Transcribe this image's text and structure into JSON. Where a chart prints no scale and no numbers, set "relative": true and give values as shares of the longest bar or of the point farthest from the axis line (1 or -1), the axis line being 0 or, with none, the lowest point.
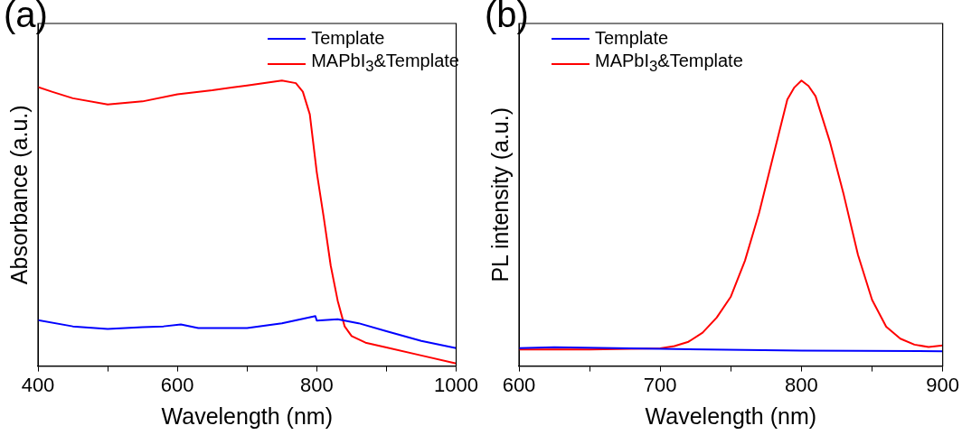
{
  "chart_data": [
    {
      "type": "line",
      "annotations": [
        "(a)"
      ],
      "xlabel": "Wavelength (nm)",
      "ylabel": "Absorbance (a.u.)",
      "relative": true,
      "legend": "top right",
      "grid": false,
      "xlim": [
        400,
        1000
      ],
      "xticks": [
        400,
        {
          "value": 500,
          "label": null
        },
        600,
        {
          "value": 700,
          "label": null
        },
        800,
        {
          "value": 900,
          "label": null
        },
        1000
      ],
      "series": [
        {
          "name": "Template",
          "color": "#0000ff",
          "x": [
            400,
            450,
            500,
            550,
            580,
            605,
            630,
            700,
            750,
            798,
            800,
            830,
            860,
            900,
            950,
            1000
          ],
          "values": [
            0.161,
            0.139,
            0.13,
            0.136,
            0.139,
            0.146,
            0.133,
            0.133,
            0.15,
            0.175,
            0.159,
            0.164,
            0.15,
            0.122,
            0.088,
            0.063
          ]
        },
        {
          "name": "MAPbI$_{3}$&Template",
          "color": "#ff0000",
          "x": [
            400,
            420,
            450,
            500,
            550,
            600,
            650,
            700,
            750,
            770,
            780,
            790,
            800,
            810,
            820,
            830,
            840,
            850,
            870,
            900,
            950,
            1000
          ],
          "values": [
            0.977,
            0.961,
            0.938,
            0.916,
            0.927,
            0.952,
            0.966,
            0.983,
            1.0,
            0.991,
            0.961,
            0.882,
            0.679,
            0.521,
            0.352,
            0.229,
            0.139,
            0.105,
            0.082,
            0.065,
            0.037,
            0.009
          ]
        }
      ]
    },
    {
      "type": "line",
      "annotations": [
        "(b)"
      ],
      "xlabel": "Wavelength (nm)",
      "ylabel": "PL intensity (a.u.)",
      "relative": true,
      "legend": "top left",
      "grid": false,
      "xlim": [
        600,
        900
      ],
      "xticks": [
        600,
        {
          "value": 650,
          "label": null
        },
        700,
        {
          "value": 750,
          "label": null
        },
        800,
        {
          "value": 850,
          "label": null
        },
        900
      ],
      "series": [
        {
          "name": "Template",
          "color": "#0000ff",
          "x": [
            600,
            625,
            700,
            800,
            900
          ],
          "values": [
            0.063,
            0.066,
            0.06,
            0.054,
            0.052
          ]
        },
        {
          "name": "MAPbI$_{3}$&Template",
          "color": "#ff0000",
          "x": [
            600,
            650,
            700,
            710,
            720,
            730,
            740,
            750,
            760,
            770,
            780,
            790,
            795,
            800,
            805,
            810,
            820,
            830,
            840,
            850,
            860,
            870,
            880,
            890,
            900
          ],
          "values": [
            0.058,
            0.058,
            0.062,
            0.07,
            0.085,
            0.117,
            0.17,
            0.243,
            0.369,
            0.536,
            0.735,
            0.934,
            0.976,
            1.0,
            0.981,
            0.945,
            0.788,
            0.599,
            0.39,
            0.232,
            0.138,
            0.096,
            0.075,
            0.067,
            0.072
          ]
        }
      ]
    }
  ]
}
